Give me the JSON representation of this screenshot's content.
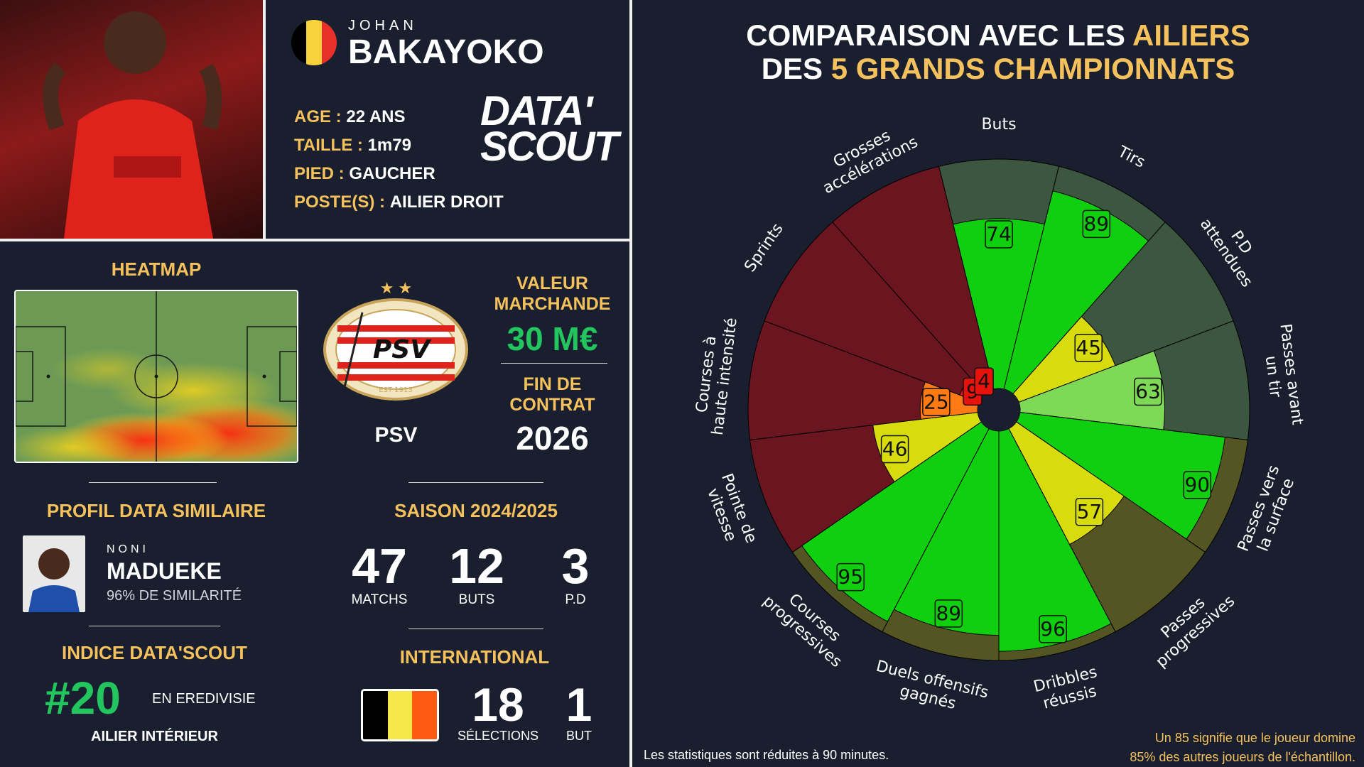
{
  "player": {
    "first_name": "JOHAN",
    "last_name": "BAKAYOKO",
    "age_label": "AGE :",
    "age_value": "22 ANS",
    "height_label": "TAILLE :",
    "height_value": "1m79",
    "foot_label": "PIED :",
    "foot_value": "GAUCHER",
    "position_label": "POSTE(S) :",
    "position_value": "AILIER DROIT",
    "flag_colors": [
      "#000000",
      "#f7d23a",
      "#e8302a"
    ]
  },
  "brand": {
    "line1": "DATA'",
    "line2": "SCOUT"
  },
  "heatmap": {
    "title": "HEATMAP"
  },
  "club": {
    "name": "PSV",
    "logo_text": "PSV",
    "logo_year": "EST 1913",
    "stars": "★ ★",
    "market_value_label": "VALEUR MARCHANDE",
    "market_value": "30 M€",
    "contract_label": "FIN DE CONTRAT",
    "contract_end": "2026"
  },
  "similar": {
    "title": "PROFIL DATA SIMILAIRE",
    "first_name": "NONI",
    "last_name": "MADUEKE",
    "similarity": "96% DE SIMILARITÉ"
  },
  "season": {
    "title": "SAISON 2024/2025",
    "stats": [
      {
        "value": "47",
        "label": "MATCHS"
      },
      {
        "value": "12",
        "label": "BUTS"
      },
      {
        "value": "3",
        "label": "P.D"
      }
    ]
  },
  "index": {
    "title": "INDICE DATA'SCOUT",
    "rank": "#20",
    "league": "EN EREDIVISIE",
    "role": "AILIER INTÉRIEUR"
  },
  "international": {
    "title": "INTERNATIONAL",
    "caps": "18",
    "caps_label": "SÉLECTIONS",
    "goals": "1",
    "goals_label": "BUT"
  },
  "comparison": {
    "title_line1_white": "COMPARAISON AVEC LES ",
    "title_line1_yellow": "AILIERS",
    "title_line2_white1": "DES ",
    "title_line2_yellow": "5 GRANDS CHAMPIONNATS",
    "footnote_left": "Les statistiques sont réduites à 90 minutes.",
    "footnote_right_1": "Un 85 signifie que le joueur domine",
    "footnote_right_2": "85% des autres joueurs de l'échantillon."
  },
  "chart_data": {
    "type": "polar-bar",
    "scale": [
      0,
      100
    ],
    "categories": [
      {
        "name": "Buts",
        "lines": [
          "Buts"
        ],
        "value": 74,
        "group": "attack"
      },
      {
        "name": "Tirs",
        "lines": [
          "Tirs"
        ],
        "value": 89,
        "group": "attack"
      },
      {
        "name": "P.D attendues",
        "lines": [
          "P.D",
          "attendues"
        ],
        "value": 45,
        "group": "attack"
      },
      {
        "name": "Passes avant un tir",
        "lines": [
          "Passes avant",
          "un tir"
        ],
        "value": 63,
        "group": "attack"
      },
      {
        "name": "Passes vers la surface",
        "lines": [
          "Passes vers",
          "la surface"
        ],
        "value": 90,
        "group": "possession"
      },
      {
        "name": "Passes progressives",
        "lines": [
          "Passes",
          "progressives"
        ],
        "value": 57,
        "group": "possession"
      },
      {
        "name": "Dribbles réussis",
        "lines": [
          "Dribbles",
          "réussis"
        ],
        "value": 96,
        "group": "possession"
      },
      {
        "name": "Duels offensifs gagnés",
        "lines": [
          "Duels offensifs",
          "gagnés"
        ],
        "value": 89,
        "group": "possession"
      },
      {
        "name": "Courses progressives",
        "lines": [
          "Courses",
          "progressives"
        ],
        "value": 95,
        "group": "possession"
      },
      {
        "name": "Pointe de vitesse",
        "lines": [
          "Pointe de",
          "vitesse"
        ],
        "value": 46,
        "group": "physical"
      },
      {
        "name": "Courses à haute intensité",
        "lines": [
          "Courses à",
          "haute intensité"
        ],
        "value": 25,
        "group": "physical"
      },
      {
        "name": "Sprints",
        "lines": [
          "Sprints"
        ],
        "value": 9,
        "group": "physical"
      },
      {
        "name": "Grosses accélérations",
        "lines": [
          "Grosses",
          "accélérations"
        ],
        "value": 4,
        "group": "physical"
      }
    ],
    "background_colors": {
      "attack": "#3d5640",
      "possession": "#545522",
      "physical": "#6b1520"
    }
  }
}
